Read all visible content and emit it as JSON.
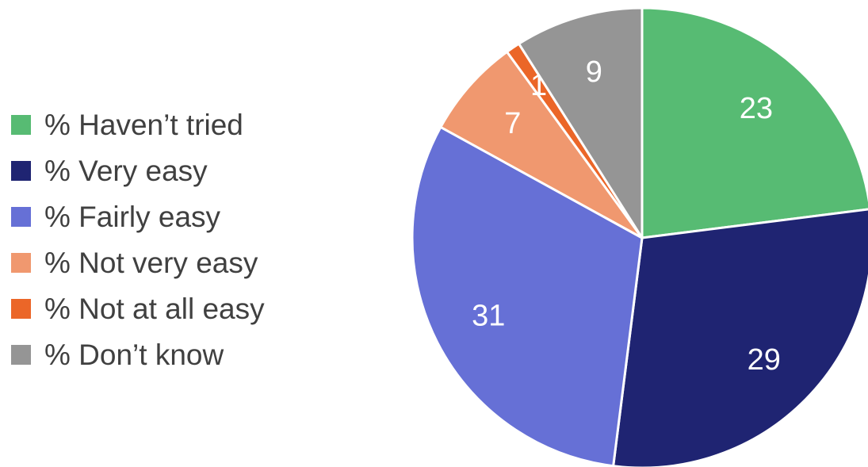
{
  "chart_data": {
    "type": "pie",
    "title": "",
    "legend_position": "left",
    "slices": [
      {
        "label": "% Haven’t tried",
        "value": 23,
        "color": "#57bb73"
      },
      {
        "label": "% Very easy",
        "value": 29,
        "color": "#1f2472"
      },
      {
        "label": "% Fairly easy",
        "value": 31,
        "color": "#6670d6"
      },
      {
        "label": "% Not very easy",
        "value": 7,
        "color": "#f0986f"
      },
      {
        "label": "% Not at all easy",
        "value": 1,
        "color": "#eb6628"
      },
      {
        "label": "% Don’t know",
        "value": 9,
        "color": "#959595"
      }
    ]
  }
}
